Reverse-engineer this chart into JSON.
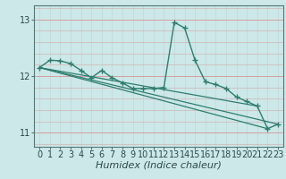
{
  "title": "",
  "xlabel": "Humidex (Indice chaleur)",
  "ylabel": "",
  "bg_color": "#cce8e8",
  "line_color": "#2e7d6e",
  "grid_color_v": "#c8d8d8",
  "grid_color_h": "#d4a0a0",
  "xlim": [
    -0.5,
    23.5
  ],
  "ylim": [
    10.75,
    13.25
  ],
  "yticks": [
    11,
    12,
    13
  ],
  "xticks": [
    0,
    1,
    2,
    3,
    4,
    5,
    6,
    7,
    8,
    9,
    10,
    11,
    12,
    13,
    14,
    15,
    16,
    17,
    18,
    19,
    20,
    21,
    22,
    23
  ],
  "series": [
    [
      0,
      12.15
    ],
    [
      1,
      12.28
    ],
    [
      2,
      12.27
    ],
    [
      3,
      12.22
    ],
    [
      4,
      12.1
    ],
    [
      5,
      11.97
    ],
    [
      6,
      12.1
    ],
    [
      7,
      11.97
    ],
    [
      8,
      11.88
    ],
    [
      9,
      11.78
    ],
    [
      10,
      11.78
    ],
    [
      11,
      11.78
    ],
    [
      12,
      11.8
    ],
    [
      13,
      12.95
    ],
    [
      14,
      12.85
    ],
    [
      15,
      12.28
    ],
    [
      16,
      11.9
    ],
    [
      17,
      11.85
    ],
    [
      18,
      11.78
    ],
    [
      19,
      11.63
    ],
    [
      20,
      11.55
    ],
    [
      21,
      11.47
    ],
    [
      22,
      11.07
    ],
    [
      23,
      11.15
    ]
  ],
  "extra_lines": [
    [
      [
        0,
        12.15
      ],
      [
        23,
        11.15
      ]
    ],
    [
      [
        0,
        12.15
      ],
      [
        22,
        11.07
      ]
    ],
    [
      [
        0,
        12.15
      ],
      [
        21,
        11.47
      ]
    ]
  ],
  "tick_fontsize": 7,
  "xlabel_fontsize": 8
}
